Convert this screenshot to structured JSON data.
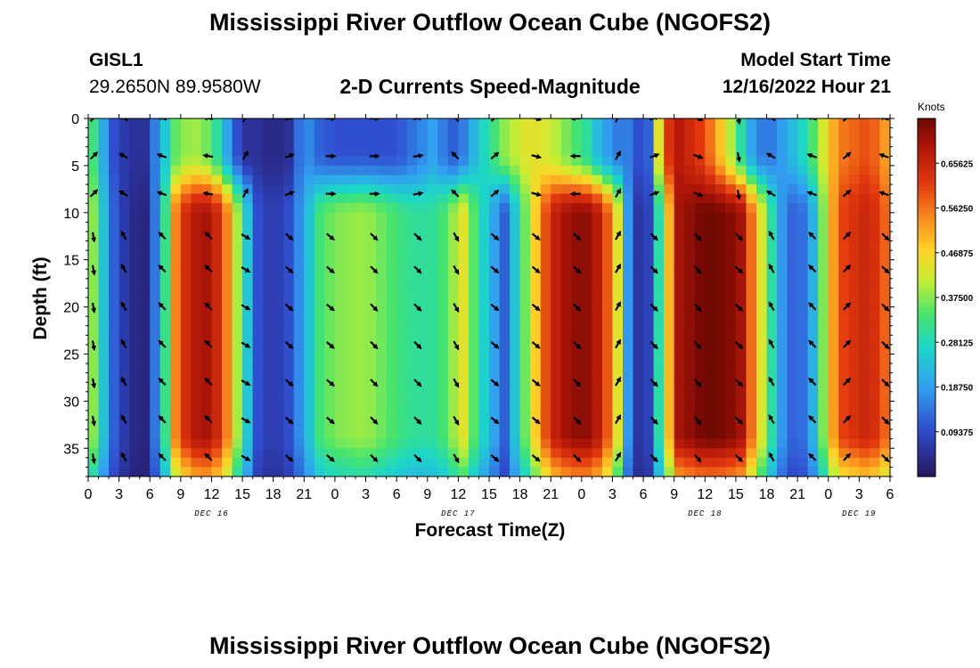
{
  "page": {
    "title": "Mississippi River Outflow Ocean Cube (NGOFS2)",
    "bottom_title": "Mississippi River Outflow Ocean Cube (NGOFS2)"
  },
  "station": {
    "name": "GISL1",
    "coords": "29.2650N  89.9580W"
  },
  "model": {
    "label": "Model Start Time",
    "start": "12/16/2022 Hour 21"
  },
  "chart_data": {
    "type": "heatmap",
    "title": "2-D Currents Speed-Magnitude",
    "xlabel": "Forecast Time(Z)",
    "ylabel": "Depth (ft)",
    "x_ticks": [
      "0",
      "3",
      "6",
      "9",
      "12",
      "15",
      "18",
      "21",
      "0",
      "3",
      "6",
      "9",
      "12",
      "15",
      "18",
      "21",
      "0",
      "3",
      "6",
      "9",
      "12",
      "15",
      "18",
      "21",
      "0",
      "3",
      "6"
    ],
    "x_range_hours": [
      0,
      78
    ],
    "day_labels": [
      {
        "label": "DEC 16",
        "hour": 12
      },
      {
        "label": "DEC 17",
        "hour": 36
      },
      {
        "label": "DEC 18",
        "hour": 60
      },
      {
        "label": "DEC 19",
        "hour": 75
      }
    ],
    "y_ticks": [
      0,
      5,
      10,
      15,
      20,
      25,
      30,
      35
    ],
    "ylim": [
      0,
      38
    ],
    "y_inverted": true,
    "colorbar": {
      "unit": "Knots",
      "ticks": [
        "0.65625",
        "0.56250",
        "0.46875",
        "0.37500",
        "0.28125",
        "0.18750",
        "0.09375"
      ],
      "range": [
        0,
        0.75
      ]
    },
    "speed_model": {
      "hours": [
        0,
        1,
        2.5,
        4,
        5.5,
        7,
        8.5,
        10,
        12,
        13.5,
        15,
        16.5,
        18,
        19.5,
        21,
        22.5,
        24,
        27,
        30,
        32,
        34,
        35,
        36.5,
        38,
        40.5,
        43,
        45,
        47,
        48.5,
        50,
        51.5,
        52.5,
        53.5,
        54.5,
        56,
        57.5,
        60,
        62,
        63.5,
        65,
        66.5,
        68,
        70,
        73,
        76,
        78
      ],
      "deep": [
        0.45,
        0.3,
        0.12,
        0.04,
        0.03,
        0.2,
        0.55,
        0.68,
        0.7,
        0.55,
        0.32,
        0.1,
        0.06,
        0.1,
        0.2,
        0.33,
        0.37,
        0.39,
        0.33,
        0.3,
        0.31,
        0.36,
        0.44,
        0.3,
        0.12,
        0.42,
        0.65,
        0.72,
        0.72,
        0.66,
        0.44,
        0.18,
        0.06,
        0.08,
        0.4,
        0.7,
        0.75,
        0.74,
        0.7,
        0.5,
        0.3,
        0.12,
        0.14,
        0.6,
        0.66,
        0.55
      ],
      "surface": [
        0.4,
        0.25,
        0.1,
        0.05,
        0.05,
        0.2,
        0.35,
        0.4,
        0.35,
        0.2,
        0.05,
        0.05,
        0.03,
        0.05,
        0.18,
        0.12,
        0.1,
        0.1,
        0.1,
        0.15,
        0.2,
        0.1,
        0.15,
        0.25,
        0.38,
        0.45,
        0.42,
        0.35,
        0.3,
        0.2,
        0.15,
        0.15,
        0.1,
        0.12,
        0.6,
        0.68,
        0.6,
        0.45,
        0.3,
        0.15,
        0.15,
        0.2,
        0.3,
        0.55,
        0.6,
        0.5
      ]
    },
    "vectors": {
      "columns": [
        0.5,
        3.5,
        7.25,
        11.75,
        15.25,
        19.5,
        23.5,
        27.75,
        32,
        35.75,
        39.5,
        43.5,
        47.5,
        51.5,
        55,
        59.25,
        63.25,
        66.5,
        70.5,
        73.75,
        77.5
      ],
      "depths": [
        0,
        4,
        8,
        12.5,
        16,
        20,
        24,
        28,
        32,
        36
      ],
      "surface_dir": [
        -45,
        -150,
        -160,
        -170,
        -60,
        -20,
        0,
        0,
        -10,
        -135,
        -40,
        15,
        180,
        -60,
        -20,
        20,
        80,
        -150,
        -160,
        -40,
        -160
      ],
      "deep_dir": [
        80,
        -120,
        -135,
        -135,
        30,
        40,
        40,
        45,
        45,
        60,
        40,
        40,
        45,
        -60,
        45,
        50,
        45,
        -120,
        -135,
        -45,
        45
      ]
    }
  }
}
